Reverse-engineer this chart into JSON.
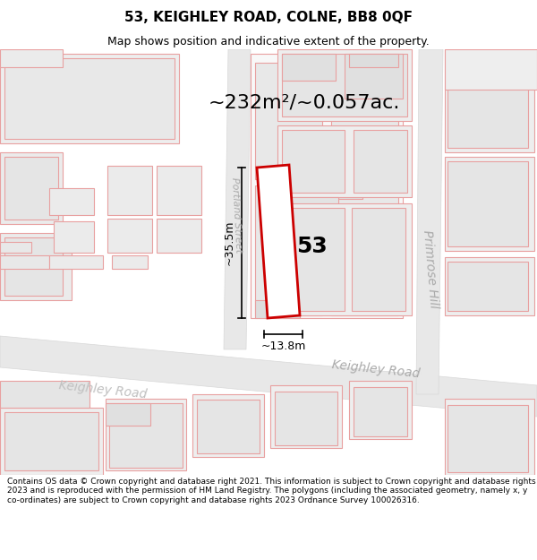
{
  "title_line1": "53, KEIGHLEY ROAD, COLNE, BB8 0QF",
  "title_line2": "Map shows position and indicative extent of the property.",
  "area_label": "~232m²/~0.057ac.",
  "width_label": "~13.8m",
  "height_label": "~35.5m",
  "property_number": "53",
  "footer_text": "Contains OS data © Crown copyright and database right 2021. This information is subject to Crown copyright and database rights 2023 and is reproduced with the permission of HM Land Registry. The polygons (including the associated geometry, namely x, y co-ordinates) are subject to Crown copyright and database rights 2023 Ordnance Survey 100026316.",
  "map_bg": "#ffffff",
  "road_fill": "#e8e8e8",
  "road_edge": "#d8d8d8",
  "building_fill": "#ebebeb",
  "building_edge": "#e8a0a0",
  "building_lw": 0.8,
  "property_fill": "#ffffff",
  "property_edge": "#cc0000",
  "property_lw": 2.0,
  "dim_color": "#000000",
  "street_color": "#aaaaaa",
  "title_fs": 11,
  "subtitle_fs": 9,
  "area_fs": 16,
  "number_fs": 18,
  "dim_fs": 9,
  "street_fs": 10
}
